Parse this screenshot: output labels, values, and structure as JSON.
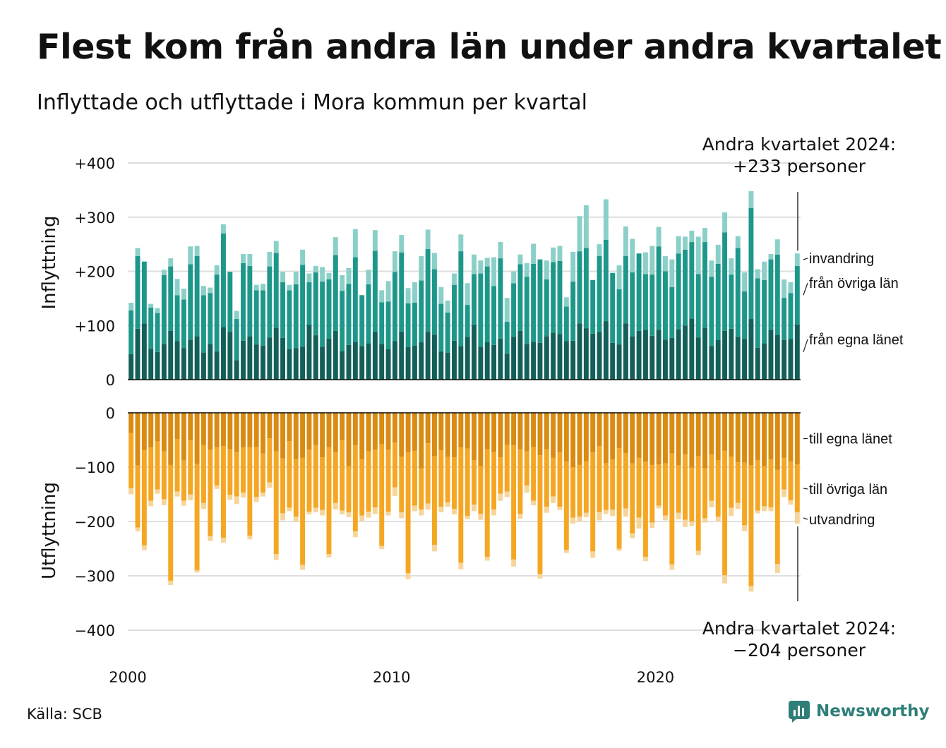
{
  "title": "Flest kom från andra län under andra kvartalet",
  "subtitle": "Inflyttade och utflyttade i Mora kommun per kvartal",
  "source": "Källa: SCB",
  "brand": "Newsworthy",
  "colors": {
    "in_own": "#135f59",
    "in_other": "#1e978b",
    "in_immig": "#8bd0c8",
    "out_own": "#d98b12",
    "out_other": "#f5a623",
    "out_emig": "#f6d59b",
    "brand": "#2f7f78"
  },
  "chart_data": {
    "type": "bar",
    "stacked": true,
    "x_start": 2000,
    "x_ticks": [
      "2000",
      "2010",
      "2020"
    ],
    "y_ticks_in": [
      "+400",
      "+300",
      "+200",
      "+100",
      "0"
    ],
    "y_ticks_out": [
      "0",
      "−100",
      "−200",
      "−300",
      "−400"
    ],
    "ylabel_in": "Inflyttning",
    "ylabel_out": "Utflyttning",
    "ylim_in": [
      0,
      400
    ],
    "ylim_out": [
      -400,
      0
    ],
    "grid": true,
    "annotation_in": [
      "Andra kvartalet 2024:",
      "+233 personer"
    ],
    "annotation_out": [
      "Andra kvartalet 2024:",
      "−204 personer"
    ],
    "series_labels_in": [
      "invandring",
      "från övriga län",
      "från egna länet"
    ],
    "series_labels_out": [
      "till egna länet",
      "till övriga län",
      "utvandring"
    ],
    "inflow": {
      "from_own_county": [
        47,
        94,
        104,
        57,
        51,
        66,
        90,
        71,
        58,
        74,
        80,
        50,
        66,
        52,
        97,
        88,
        36,
        72,
        80,
        65,
        63,
        78,
        96,
        77,
        56,
        58,
        61,
        101,
        82,
        61,
        76,
        90,
        53,
        64,
        70,
        62,
        67,
        89,
        66,
        56,
        71,
        89,
        60,
        63,
        69,
        88,
        83,
        52,
        50,
        72,
        62,
        79,
        101,
        61,
        69,
        64,
        76,
        48,
        79,
        90,
        66,
        70,
        68,
        80,
        87,
        84,
        71,
        72,
        104,
        95,
        85,
        88,
        108,
        68,
        65,
        104,
        80,
        90,
        92,
        81,
        92,
        74,
        77,
        93,
        100,
        113,
        78,
        96,
        62,
        73,
        90,
        94,
        79,
        75,
        112,
        59,
        67,
        92,
        83,
        73,
        75,
        102
      ],
      "from_other_counties": [
        81,
        134,
        114,
        76,
        72,
        127,
        119,
        85,
        90,
        139,
        148,
        106,
        94,
        142,
        173,
        111,
        76,
        143,
        130,
        100,
        102,
        131,
        138,
        103,
        109,
        118,
        151,
        79,
        116,
        120,
        109,
        140,
        111,
        113,
        156,
        94,
        109,
        149,
        77,
        88,
        128,
        146,
        81,
        79,
        114,
        153,
        121,
        88,
        74,
        103,
        175,
        59,
        94,
        135,
        140,
        109,
        148,
        59,
        99,
        123,
        124,
        144,
        154,
        105,
        130,
        135,
        64,
        109,
        133,
        148,
        99,
        140,
        150,
        129,
        102,
        124,
        118,
        143,
        103,
        113,
        154,
        126,
        94,
        140,
        140,
        141,
        117,
        158,
        128,
        141,
        182,
        100,
        164,
        88,
        205,
        128,
        117,
        130,
        148,
        78,
        85,
        108
      ],
      "immigration": [
        14,
        15,
        0,
        7,
        9,
        10,
        15,
        30,
        20,
        33,
        19,
        17,
        10,
        17,
        17,
        0,
        15,
        17,
        22,
        10,
        12,
        27,
        22,
        19,
        10,
        23,
        28,
        16,
        12,
        27,
        12,
        33,
        29,
        29,
        52,
        0,
        27,
        38,
        22,
        38,
        38,
        32,
        28,
        38,
        45,
        36,
        30,
        31,
        22,
        21,
        31,
        40,
        36,
        24,
        16,
        53,
        30,
        44,
        22,
        18,
        25,
        37,
        0,
        35,
        27,
        28,
        17,
        55,
        65,
        79,
        0,
        22,
        75,
        0,
        44,
        55,
        62,
        0,
        40,
        53,
        36,
        28,
        51,
        32,
        24,
        21,
        69,
        26,
        30,
        35,
        37,
        30,
        22,
        35,
        31,
        17,
        34,
        10,
        28,
        34,
        20,
        23
      ]
    },
    "outflow": {
      "to_own_county": [
        -37,
        -97,
        -69,
        -64,
        -53,
        -71,
        -96,
        -48,
        -88,
        -51,
        -94,
        -59,
        -68,
        -63,
        -61,
        -67,
        -72,
        -64,
        -63,
        -63,
        -75,
        -47,
        -71,
        -84,
        -52,
        -85,
        -83,
        -68,
        -59,
        -82,
        -63,
        -73,
        -50,
        -98,
        -60,
        -85,
        -71,
        -68,
        -58,
        -68,
        -55,
        -81,
        -73,
        -70,
        -102,
        -56,
        -80,
        -69,
        -81,
        -82,
        -64,
        -66,
        -87,
        -98,
        -67,
        -72,
        -82,
        -59,
        -60,
        -67,
        -71,
        -63,
        -78,
        -67,
        -83,
        -73,
        -90,
        -100,
        -96,
        -89,
        -73,
        -61,
        -93,
        -86,
        -65,
        -74,
        -93,
        -83,
        -90,
        -96,
        -95,
        -93,
        -75,
        -97,
        -76,
        -101,
        -80,
        -102,
        -77,
        -87,
        -70,
        -81,
        -91,
        -92,
        -97,
        -87,
        -99,
        -86,
        -105,
        -83,
        -90,
        -95
      ],
      "to_other_counties": [
        -102,
        -114,
        -175,
        -98,
        -88,
        -88,
        -213,
        -97,
        -74,
        -99,
        -196,
        -107,
        -159,
        -71,
        -169,
        -84,
        -82,
        -83,
        -163,
        -92,
        -72,
        -81,
        -189,
        -101,
        -123,
        -106,
        -197,
        -114,
        -116,
        -97,
        -197,
        -93,
        -130,
        -85,
        -158,
        -104,
        -111,
        -106,
        -187,
        -114,
        -82,
        -102,
        -222,
        -101,
        -76,
        -111,
        -163,
        -104,
        -84,
        -95,
        -212,
        -124,
        -82,
        -88,
        -198,
        -106,
        -67,
        -86,
        -210,
        -119,
        -63,
        -99,
        -219,
        -106,
        -71,
        -100,
        -162,
        -93,
        -95,
        -95,
        -182,
        -122,
        -86,
        -92,
        -185,
        -102,
        -129,
        -110,
        -175,
        -106,
        -76,
        -96,
        -204,
        -87,
        -121,
        -99,
        -174,
        -92,
        -85,
        -104,
        -229,
        -94,
        -75,
        -115,
        -222,
        -93,
        -73,
        -88,
        -173,
        -58,
        -71,
        -88
      ],
      "emigration": [
        -11,
        -7,
        -9,
        -10,
        -8,
        -11,
        -8,
        -9,
        -9,
        -11,
        -4,
        -11,
        -9,
        -6,
        -9,
        -9,
        -14,
        -9,
        -7,
        -9,
        -7,
        -10,
        -11,
        -13,
        -6,
        -10,
        -9,
        -5,
        -8,
        -10,
        -6,
        -12,
        -7,
        -9,
        -11,
        -10,
        -11,
        -12,
        -6,
        -7,
        -16,
        -11,
        -11,
        -10,
        -11,
        -11,
        -12,
        -10,
        -8,
        -10,
        -12,
        -6,
        -12,
        -11,
        -7,
        -11,
        -13,
        -10,
        -13,
        -9,
        -13,
        -8,
        -8,
        -11,
        -12,
        -6,
        -6,
        -11,
        -9,
        -8,
        -12,
        -15,
        -7,
        -12,
        -4,
        -15,
        -9,
        -20,
        -8,
        -10,
        -5,
        -9,
        -10,
        -12,
        -13,
        -8,
        -8,
        -8,
        -12,
        -9,
        -15,
        -15,
        -11,
        -11,
        -10,
        -5,
        -9,
        -7,
        -17,
        -14,
        -8,
        -21
      ]
    }
  }
}
